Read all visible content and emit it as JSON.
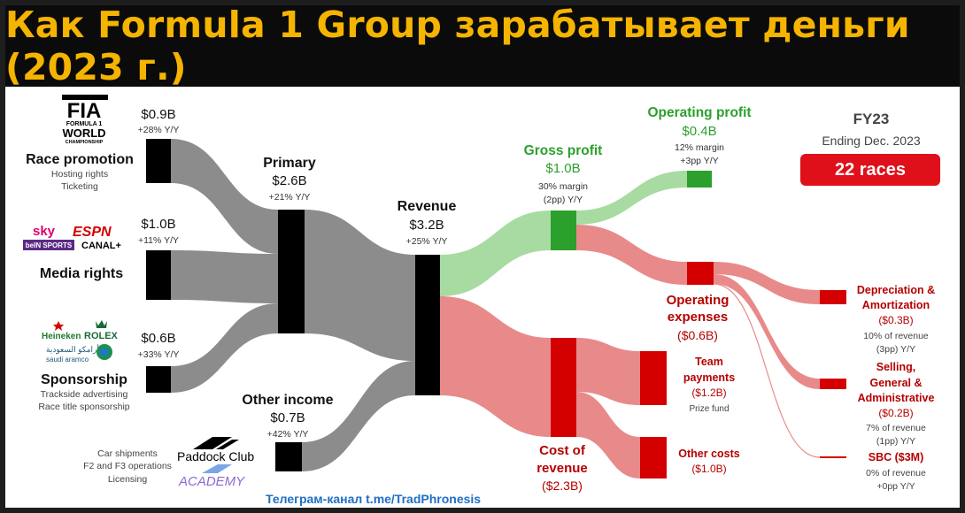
{
  "title": "Как Formula 1 Group зарабатывает деньги (2023 г.)",
  "fy": {
    "label": "FY23",
    "ending": "Ending Dec. 2023",
    "races": "22 races"
  },
  "telegram": "Телеграм-канал t.me/TradPhronesis",
  "sources": {
    "race_promotion": {
      "name": "Race promotion",
      "value": "$0.9B",
      "growth": "+28% Y/Y",
      "sub1": "Hosting rights",
      "sub2": "Ticketing",
      "logo_l1": "FIA",
      "logo_l2": "FORMULA 1",
      "logo_l3": "WORLD",
      "logo_l4": "CHAMPIONSHIP"
    },
    "media_rights": {
      "name": "Media rights",
      "value": "$1.0B",
      "growth": "+11% Y/Y",
      "logos": {
        "sky": "sky",
        "espn": "ESPN",
        "bein": "beIN SPORTS",
        "canal": "CANAL+"
      }
    },
    "sponsorship": {
      "name": "Sponsorship",
      "value": "$0.6B",
      "growth": "+33% Y/Y",
      "sub1": "Trackside advertising",
      "sub2": "Race title sponsorship",
      "logos": {
        "heineken": "Heineken",
        "rolex": "ROLEX",
        "aramco_ar": "أرامكو السعودية",
        "aramco_en": "saudi aramco"
      }
    },
    "other_income": {
      "name": "Other income",
      "value": "$0.7B",
      "growth": "+42% Y/Y",
      "sub1": "Car shipments",
      "sub2": "F2 and F3 operations",
      "sub3": "Licensing",
      "logos": {
        "paddock": "Paddock Club",
        "academy": "ACADEMY"
      }
    }
  },
  "primary": {
    "name": "Primary",
    "value": "$2.6B",
    "growth": "+21% Y/Y"
  },
  "revenue": {
    "name": "Revenue",
    "value": "$3.2B",
    "growth": "+25% Y/Y"
  },
  "gross_profit": {
    "name": "Gross profit",
    "value": "$1.0B",
    "margin": "30% margin",
    "change": "(2pp) Y/Y"
  },
  "operating_profit": {
    "name": "Operating profit",
    "value": "$0.4B",
    "margin": "12% margin",
    "change": "+3pp Y/Y"
  },
  "operating_expenses": {
    "name1": "Operating",
    "name2": "expenses",
    "value": "($0.6B)"
  },
  "cost_of_revenue": {
    "name1": "Cost of",
    "name2": "revenue",
    "value": "($2.3B)"
  },
  "team_payments": {
    "name1": "Team",
    "name2": "payments",
    "value": "($1.2B)",
    "note": "Prize fund"
  },
  "other_costs": {
    "name": "Other costs",
    "value": "($1.0B)"
  },
  "da": {
    "name1": "Depreciation &",
    "name2": "Amortization",
    "value": "($0.3B)",
    "pct": "10% of revenue",
    "change": "(3pp) Y/Y"
  },
  "sga": {
    "name1": "Selling,",
    "name2": "General &",
    "name3": "Administrative",
    "value": "($0.2B)",
    "pct": "7% of revenue",
    "change": "(1pp) Y/Y"
  },
  "sbc": {
    "name": "SBC ($3M)",
    "pct": "0% of revenue",
    "change": "+0pp Y/Y"
  },
  "colors": {
    "black": "#000000",
    "gray_flow": "#8c8c8c",
    "green": "#2ca02c",
    "green_flow": "#a8dba1",
    "red": "#d40000",
    "red_flow": "#e88a8a",
    "gold": "#f5b400"
  }
}
